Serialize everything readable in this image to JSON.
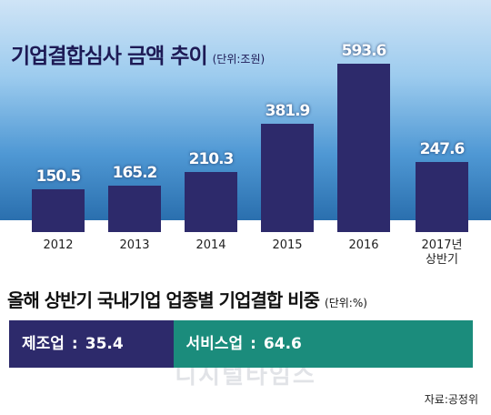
{
  "chart_data": [
    {
      "type": "bar",
      "title": "기업결합심사 금액 추이",
      "unit": "(단위:조원)",
      "categories": [
        "2012",
        "2013",
        "2014",
        "2015",
        "2016",
        "2017년\n상반기"
      ],
      "values": [
        150.5,
        165.2,
        210.3,
        381.9,
        593.6,
        247.6
      ],
      "color": "#2d2a6b"
    },
    {
      "type": "stacked-bar",
      "title": "올해 상반기 국내기업 업종별 기업결합 비중",
      "unit": "(단위:%)",
      "label_separator": ":",
      "xlim": [
        0,
        100
      ],
      "series": [
        {
          "name": "제조업",
          "color": "#2d2a6b",
          "values": [
            35.4
          ]
        },
        {
          "name": "서비스업",
          "color": "#1b8c7c",
          "values": [
            64.6
          ]
        }
      ]
    }
  ],
  "watermark": "디지털타임스",
  "source": "자료:공정위"
}
